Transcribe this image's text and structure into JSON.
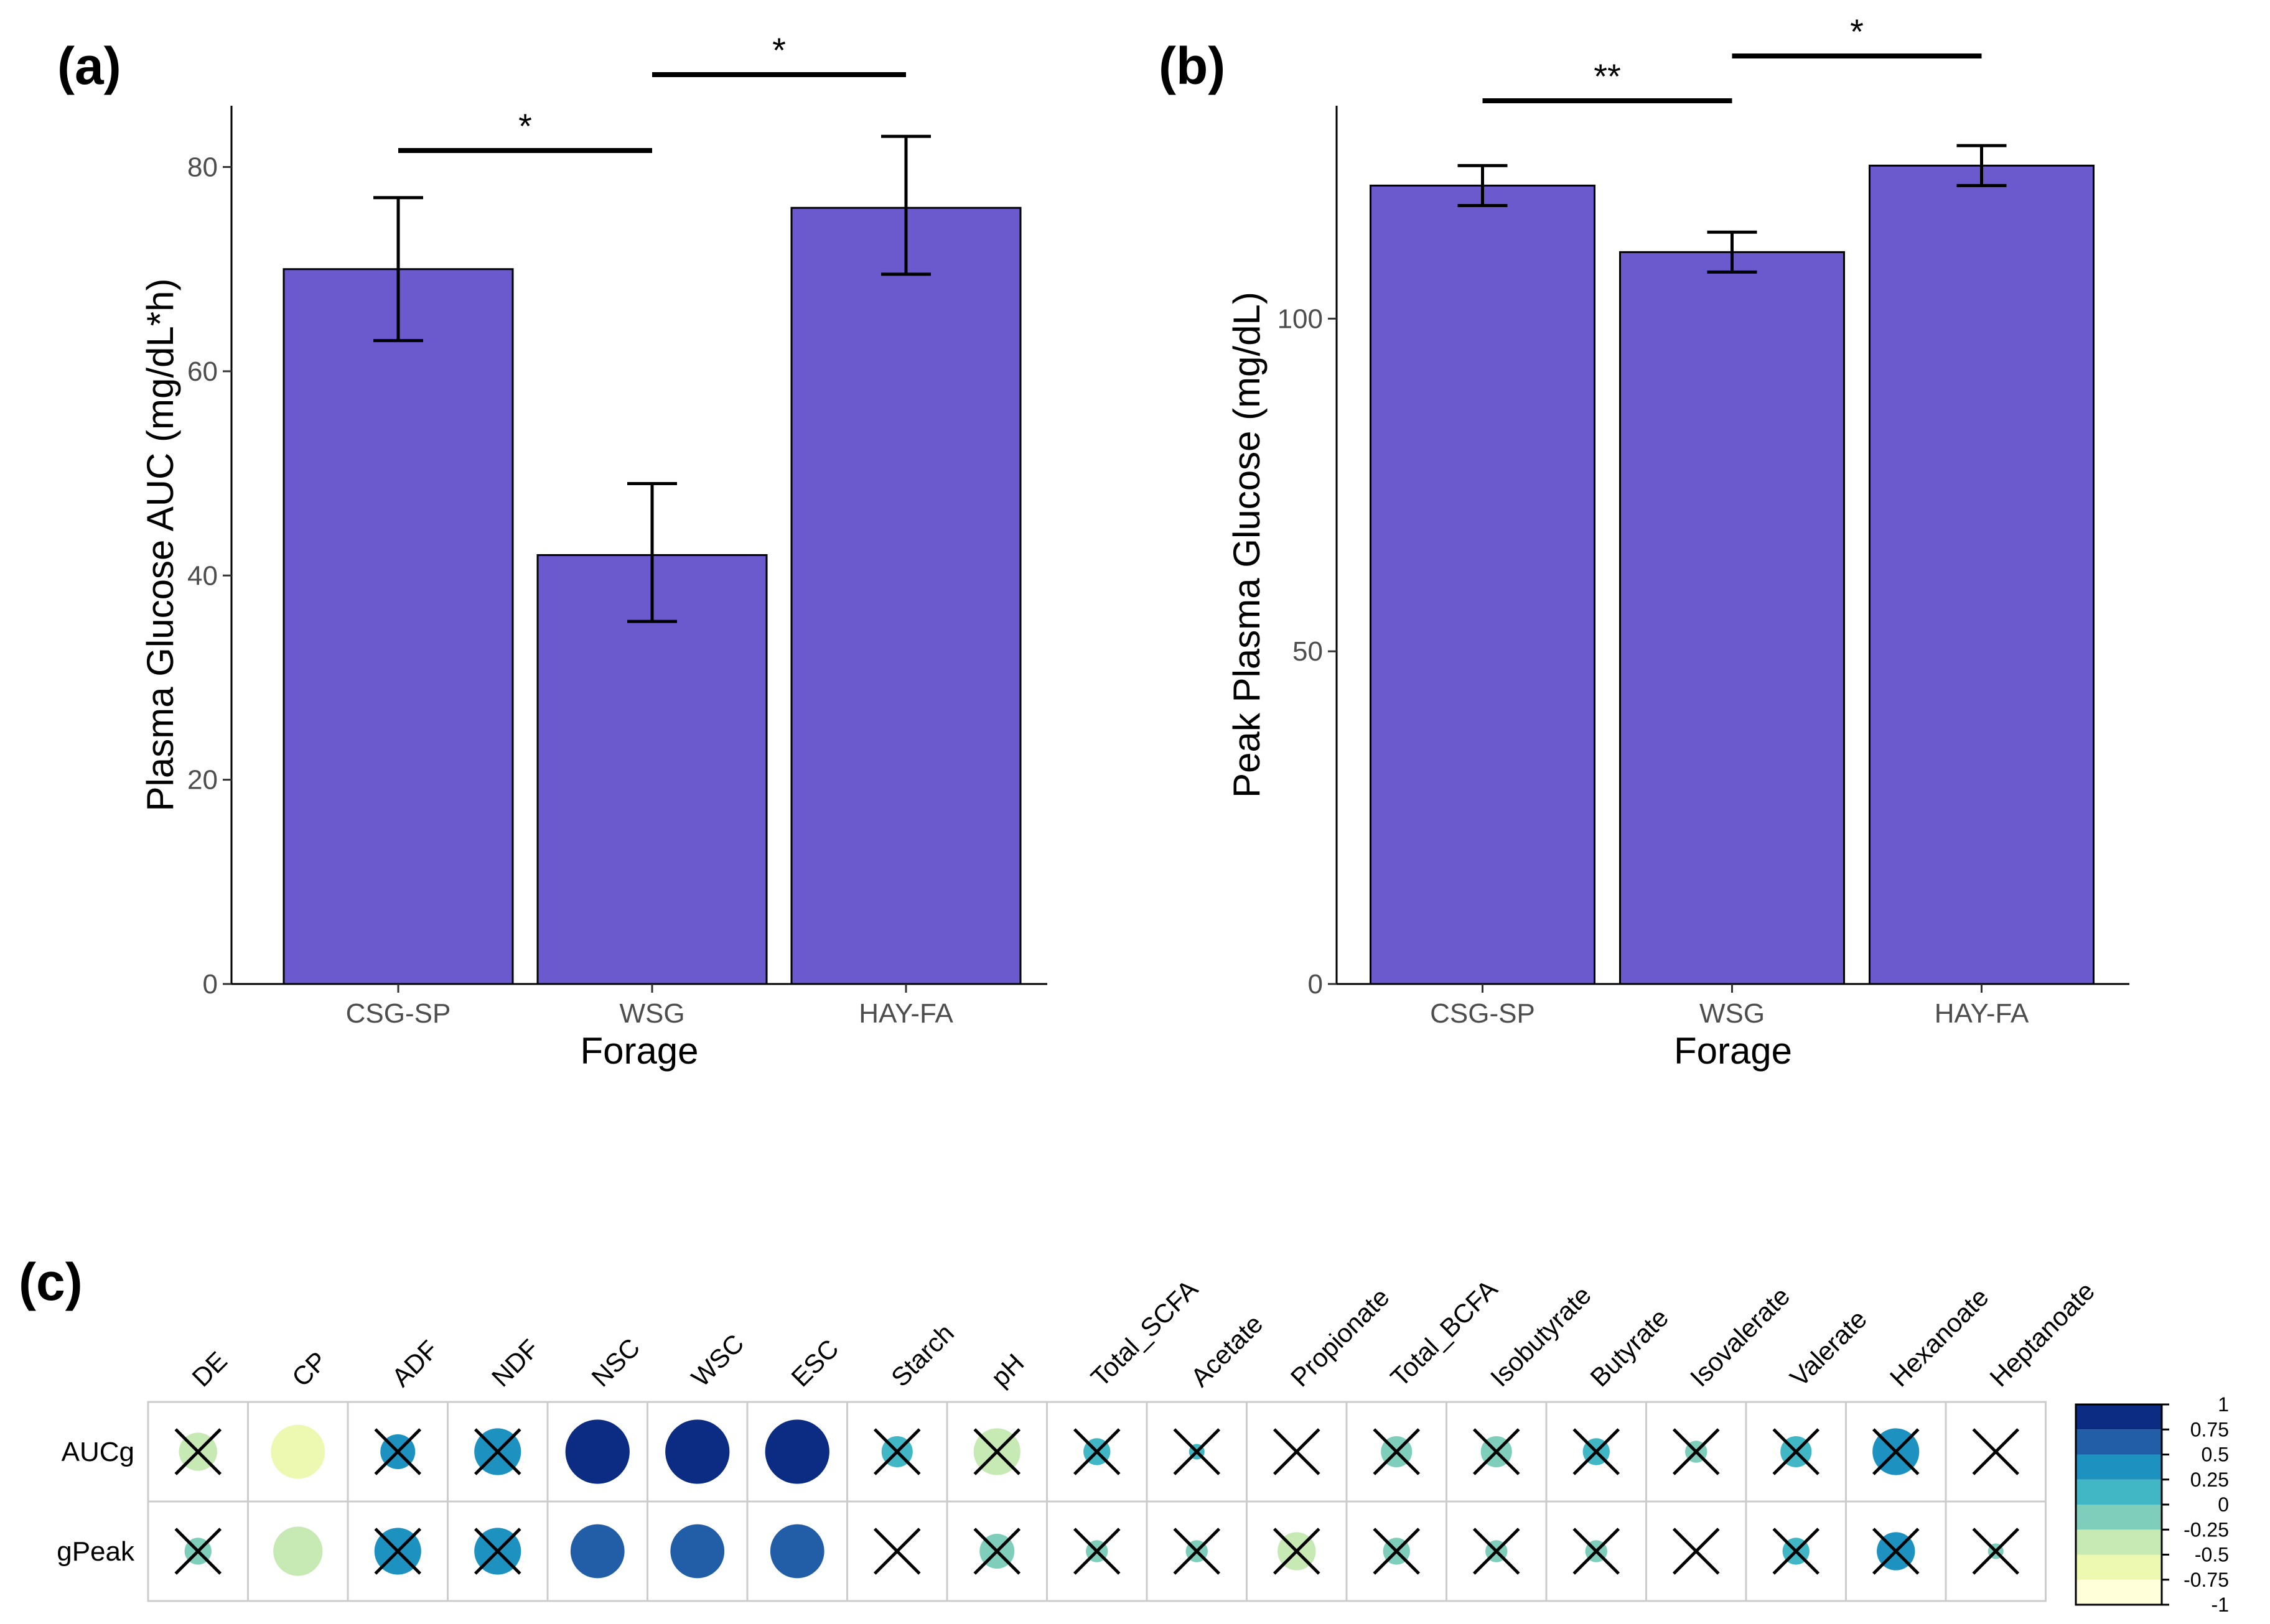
{
  "colors": {
    "bar": "#6a5acd",
    "errorbar": "#000000",
    "grid": "#cccccc"
  },
  "chart_data": [
    {
      "panel": "(a)",
      "type": "bar",
      "categories": [
        "CSG-SP",
        "WSG",
        "HAY-FA"
      ],
      "values": [
        70,
        42,
        76
      ],
      "error_low": [
        63,
        35.5,
        69.5
      ],
      "error_high": [
        77,
        49,
        83
      ],
      "xlabel": "Forage",
      "ylabel": "Plasma Glucose AUC (mg/dL*h)",
      "ylim": [
        0,
        86
      ],
      "yticks": [
        0,
        20,
        40,
        60,
        80
      ],
      "significance": [
        {
          "from": "CSG-SP",
          "to": "WSG",
          "label": "*"
        },
        {
          "from": "WSG",
          "to": "HAY-FA",
          "label": "*"
        }
      ]
    },
    {
      "panel": "(b)",
      "type": "bar",
      "categories": [
        "CSG-SP",
        "WSG",
        "HAY-FA"
      ],
      "values": [
        120,
        110,
        123
      ],
      "error_low": [
        117,
        107,
        120
      ],
      "error_high": [
        123,
        113,
        126
      ],
      "xlabel": "Forage",
      "ylabel": "Peak Plasma Glucose (mg/dL)",
      "ylim": [
        0,
        132
      ],
      "yticks": [
        0,
        50,
        100
      ],
      "significance": [
        {
          "from": "CSG-SP",
          "to": "WSG",
          "label": "**"
        },
        {
          "from": "WSG",
          "to": "HAY-FA",
          "label": "*"
        }
      ]
    },
    {
      "panel": "(c)",
      "type": "heatmap",
      "columns": [
        "DE",
        "CP",
        "ADF",
        "NDF",
        "NSC",
        "WSC",
        "ESC",
        "Starch",
        "pH",
        "Total_SCFA",
        "Acetate",
        "Propionate",
        "Total_BCFA",
        "Isobutyrate",
        "Butyrate",
        "Isovalerate",
        "Valerate",
        "Hexanoate",
        "Heptanoate"
      ],
      "rows": [
        "AUCg",
        "gPeak"
      ],
      "values": [
        [
          -0.3,
          -0.6,
          0.25,
          0.45,
          0.85,
          0.85,
          0.85,
          0.2,
          -0.45,
          0.15,
          0.05,
          0.0,
          -0.2,
          -0.2,
          0.15,
          -0.1,
          0.2,
          0.45,
          0.0
        ],
        [
          -0.15,
          -0.5,
          0.45,
          0.45,
          0.6,
          0.6,
          0.6,
          0.0,
          -0.25,
          -0.1,
          -0.1,
          -0.3,
          -0.15,
          -0.1,
          -0.1,
          0.0,
          0.15,
          0.3,
          -0.05
        ]
      ],
      "crossed": [
        [
          true,
          false,
          true,
          true,
          false,
          false,
          false,
          true,
          true,
          true,
          true,
          true,
          true,
          true,
          true,
          true,
          true,
          true,
          true
        ],
        [
          true,
          false,
          true,
          true,
          false,
          false,
          false,
          true,
          true,
          true,
          true,
          true,
          true,
          true,
          true,
          true,
          true,
          true,
          true
        ]
      ],
      "legend_ticks": [
        "1",
        "0.75",
        "0.5",
        "0.25",
        "0",
        "-0.25",
        "-0.5",
        "-0.75",
        "-1"
      ],
      "palette": [
        "#ffffd9",
        "#edf8b1",
        "#c7e9b4",
        "#7fcdbb",
        "#41b6c4",
        "#1d91c0",
        "#225ea8",
        "#0c2c84"
      ]
    }
  ]
}
